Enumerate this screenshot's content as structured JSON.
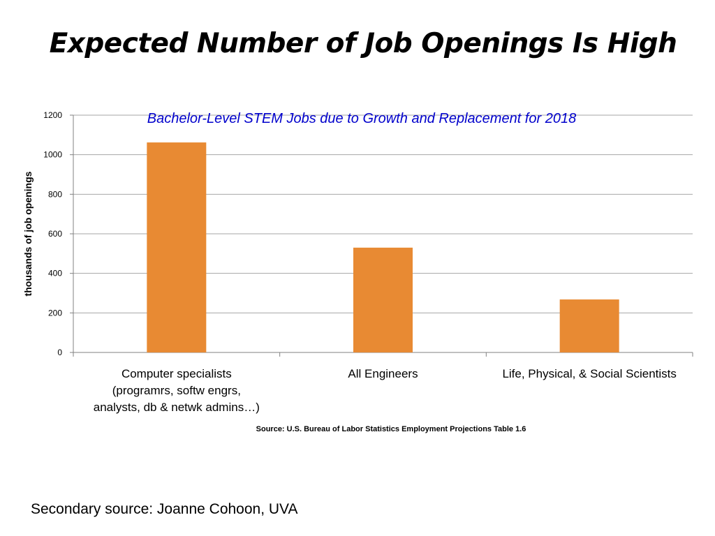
{
  "slide": {
    "title": "Expected Number of Job Openings Is High",
    "source_note": "Source: U.S. Bureau of Labor Statistics  Employment Projections Table 1.6",
    "secondary_source": "Secondary source: Joanne Cohoon, UVA"
  },
  "chart_data": {
    "type": "bar",
    "title": "Bachelor-Level STEM Jobs due to Growth and Replacement for 2018",
    "categories": [
      [
        "Computer specialists",
        "(programrs, softw engrs,",
        "analysts, db & netwk admins…)"
      ],
      [
        "All Engineers"
      ],
      [
        "Life, Physical, & Social Scientists"
      ]
    ],
    "values": [
      1062,
      530,
      268
    ],
    "xlabel": "",
    "ylabel": "thousands of job openings",
    "ylim": [
      0,
      1200
    ],
    "yticks": [
      "0",
      "200",
      "400",
      "600",
      "800",
      "1000",
      "1200"
    ],
    "grid": true,
    "legend": "none",
    "colors": {
      "bar": "#E88A33",
      "grid": "#A6A6A6",
      "axis": "#808080",
      "title": "#0000CC"
    }
  }
}
